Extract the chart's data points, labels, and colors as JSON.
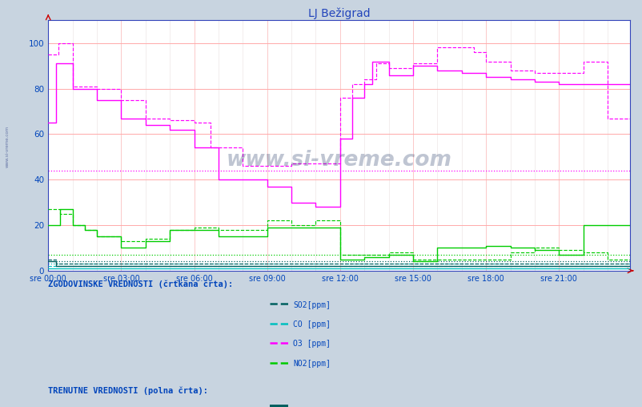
{
  "title": "LJ Bežigrad",
  "title_color": "#2244bb",
  "bg_color": "#c8d4e0",
  "plot_bg_color": "#ffffff",
  "x_ticks": [
    "sre 00:00",
    "sre 03:00",
    "sre 06:00",
    "sre 09:00",
    "sre 12:00",
    "sre 15:00",
    "sre 18:00",
    "sre 21:00"
  ],
  "x_tick_positions": [
    0,
    36,
    72,
    108,
    144,
    180,
    216,
    252
  ],
  "n_points": 288,
  "ylim": [
    0,
    110
  ],
  "yticks": [
    0,
    20,
    40,
    60,
    80,
    100
  ],
  "colors": {
    "SO2": "#006060",
    "CO": "#00c0c0",
    "O3": "#ff00ff",
    "NO2": "#00cc00"
  },
  "watermark": "www.si-vreme.com",
  "watermark_color": "#1a3060",
  "text_color": "#0044bb",
  "grid_red": "#ffaaaa",
  "grid_pink_v": "#ffbbbb",
  "grid_light": "#e8e0e0",
  "avg_lines": {
    "O3": 44,
    "NO2": 7,
    "SO2": 4,
    "CO": 3
  },
  "legend_hist_label": "ZGODOVINSKE VREDNOSTI (črtkana črta):",
  "legend_curr_label": "TRENUTNE VREDNOSTI (polna črta):",
  "legend_items": [
    "SO2[ppm]",
    "CO [ppm]",
    "O3 [ppm]",
    "NO2[ppm]"
  ]
}
